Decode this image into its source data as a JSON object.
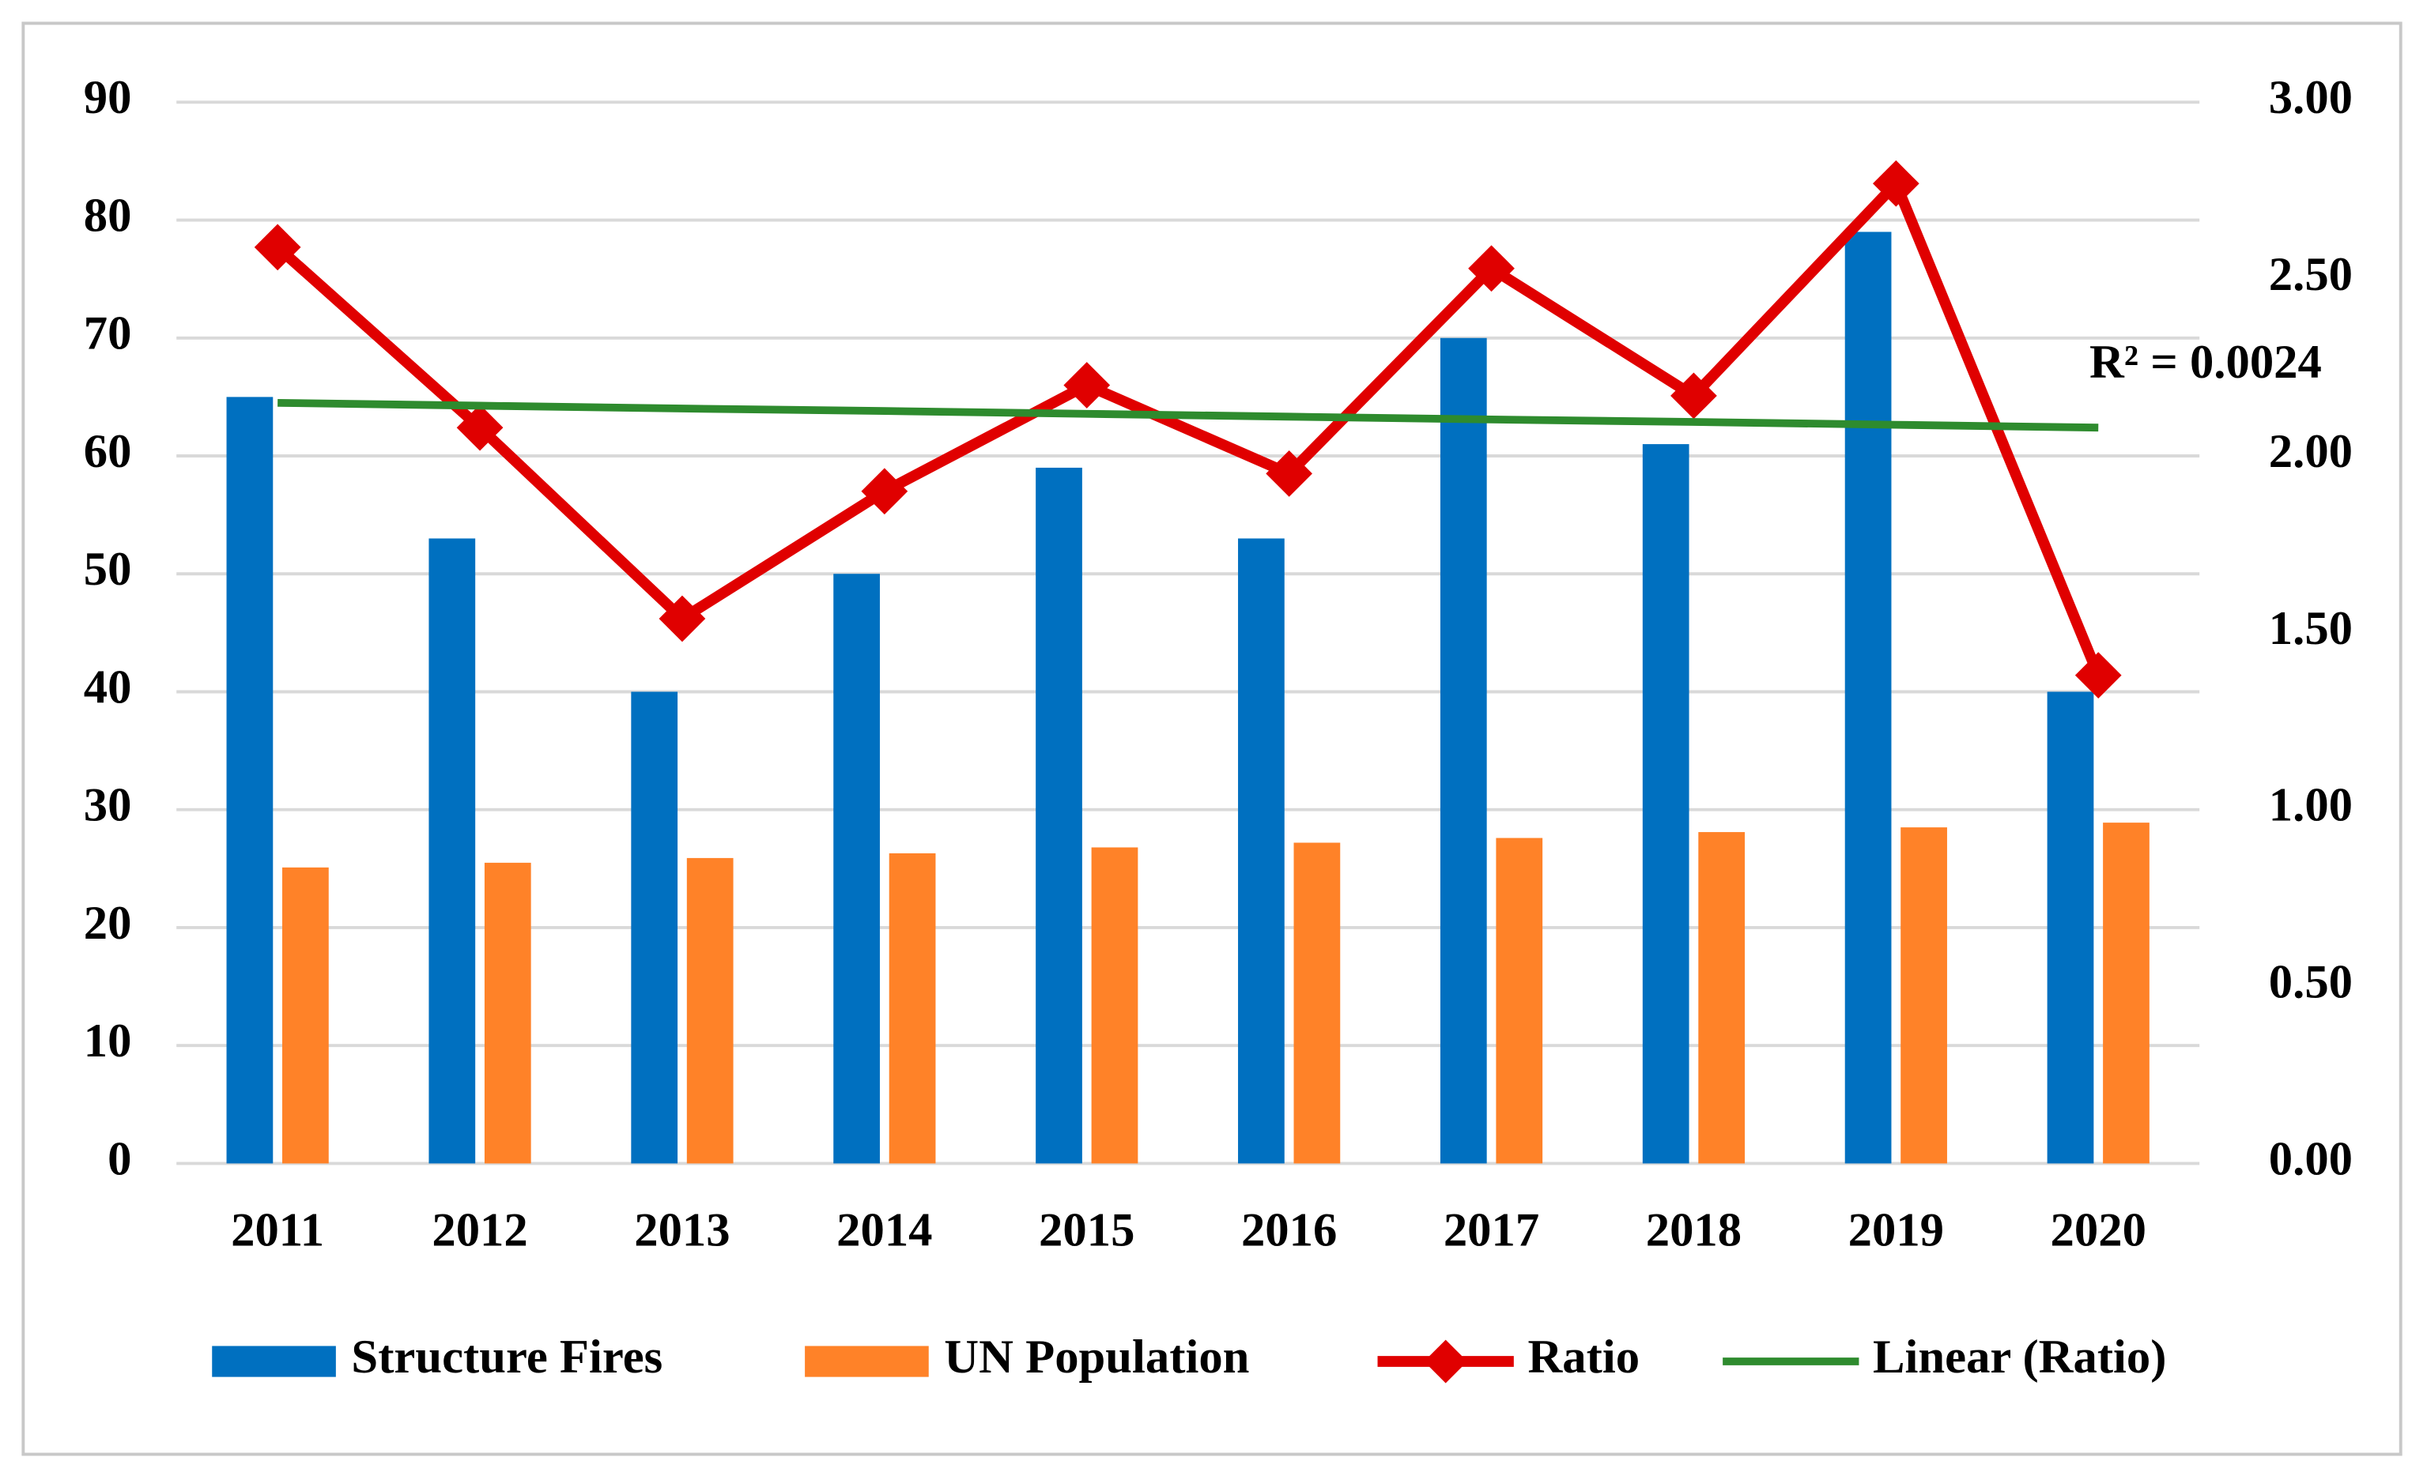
{
  "chart_data": {
    "type": "bar",
    "categories": [
      "2011",
      "2012",
      "2013",
      "2014",
      "2015",
      "2016",
      "2017",
      "2018",
      "2019",
      "2020"
    ],
    "series": [
      {
        "name": "Structure Fires",
        "color": "#0070c0",
        "type": "bar",
        "values": [
          65,
          53,
          40,
          50,
          59,
          53,
          70,
          61,
          79,
          40
        ]
      },
      {
        "name": "UN Population",
        "color": "#ff8228",
        "type": "bar",
        "values": [
          25.1,
          25.5,
          25.9,
          26.3,
          26.8,
          27.2,
          27.6,
          28.1,
          28.5,
          28.9
        ]
      },
      {
        "name": "Ratio",
        "color": "#e00000",
        "type": "line",
        "axis": "y2",
        "values": [
          2.59,
          2.08,
          1.54,
          1.9,
          2.2,
          1.95,
          2.53,
          2.17,
          2.77,
          1.38
        ]
      },
      {
        "name": "Linear (Ratio)",
        "color": "#2e8b2e",
        "type": "trend",
        "axis": "y2",
        "values": [
          2.15,
          2.142,
          2.134,
          2.127,
          2.119,
          2.111,
          2.103,
          2.096,
          2.088,
          2.08
        ]
      }
    ],
    "annotation": "R² = 0.0024",
    "ylim": [
      0,
      90
    ],
    "yticks": [
      0,
      10,
      20,
      30,
      40,
      50,
      60,
      70,
      80,
      90
    ],
    "y2lim": [
      0,
      3
    ],
    "y2ticks": [
      {
        "value": 0,
        "label": "0.00"
      },
      {
        "value": 0.5,
        "label": "0.50"
      },
      {
        "value": 1,
        "label": "1.00"
      },
      {
        "value": 1.5,
        "label": "1.50"
      },
      {
        "value": 2,
        "label": "2.00"
      },
      {
        "value": 2.5,
        "label": "2.50"
      },
      {
        "value": 3,
        "label": "3.00"
      }
    ],
    "grid": true,
    "legend": "bottom"
  }
}
